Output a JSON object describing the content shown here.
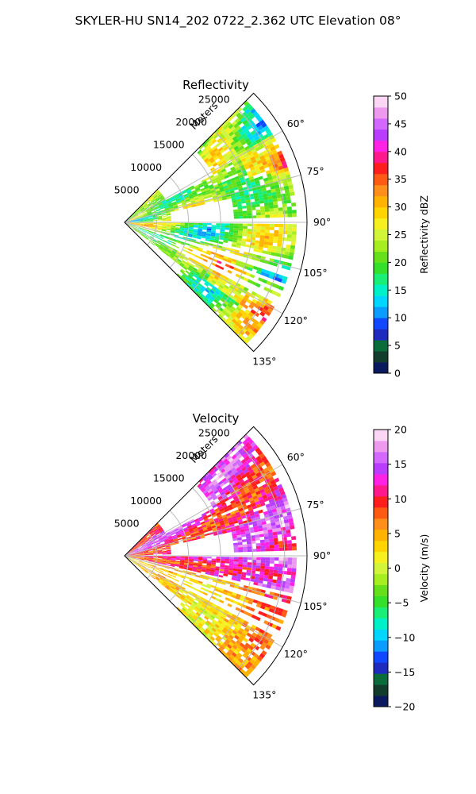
{
  "figure": {
    "title": "SKYLER-HU  SN14_202  0722_2.362 UTC Elevation 08°"
  },
  "chart_data": [
    {
      "type": "heatmap",
      "title": "Reflectivity",
      "projection": "polar-sector",
      "theta_range_deg": [
        45,
        135
      ],
      "range_label": "Meters",
      "range_ticks": [
        5000,
        10000,
        15000,
        20000,
        25000
      ],
      "range_max": 28500,
      "angle_ticks": [
        "60°",
        "75°",
        "90°",
        "105°",
        "120°",
        "135°"
      ],
      "angle_tick_values": [
        60,
        75,
        90,
        105,
        120,
        135
      ],
      "grid": true,
      "beam_gaps_deg": [
        89.3,
        103,
        107.5,
        111.5,
        114,
        117
      ],
      "colorbar": {
        "label": "Reflectivity dBZ",
        "min": 0,
        "max": 50,
        "ticks": [
          0,
          5,
          10,
          15,
          20,
          25,
          30,
          35,
          40,
          45,
          50
        ],
        "colors": [
          "#0b1a5e",
          "#123d2c",
          "#0a6b3b",
          "#1f2bbf",
          "#1148ff",
          "#0a9cff",
          "#00d6ff",
          "#00f0c8",
          "#19ef77",
          "#35e02a",
          "#66e01a",
          "#a6ee1f",
          "#d2f53a",
          "#f5f01e",
          "#ffd400",
          "#ffb200",
          "#ff8e1a",
          "#ff5a14",
          "#ff1e1e",
          "#ff1a8c",
          "#ff22e5",
          "#b93cff",
          "#d268ff",
          "#ec99ee",
          "#fbd6f5"
        ]
      }
    },
    {
      "type": "heatmap",
      "title": "Velocity",
      "projection": "polar-sector",
      "theta_range_deg": [
        45,
        135
      ],
      "range_label": "Meters",
      "range_ticks": [
        5000,
        10000,
        15000,
        20000,
        25000
      ],
      "range_max": 28500,
      "angle_ticks": [
        "60°",
        "75°",
        "90°",
        "105°",
        "120°",
        "135°"
      ],
      "angle_tick_values": [
        60,
        75,
        90,
        105,
        120,
        135
      ],
      "grid": true,
      "beam_gaps_deg": [
        89.3,
        103,
        107.5,
        111.5,
        114,
        117
      ],
      "colorbar": {
        "label": "Velocity (m/s)",
        "min": -20,
        "max": 20,
        "ticks": [
          -20,
          -15,
          -10,
          -5,
          0,
          5,
          10,
          15,
          20
        ],
        "colors": [
          "#0b1a5e",
          "#123d2c",
          "#0a6b3b",
          "#1f2bbf",
          "#1148ff",
          "#0a9cff",
          "#00d6ff",
          "#00f0c8",
          "#19ef77",
          "#35e02a",
          "#66e01a",
          "#a6ee1f",
          "#d2f53a",
          "#f5f01e",
          "#ffd400",
          "#ffb200",
          "#ff8e1a",
          "#ff5a14",
          "#ff1e1e",
          "#ff1a8c",
          "#ff22e5",
          "#b93cff",
          "#d268ff",
          "#ec99ee",
          "#fbd6f5"
        ]
      }
    }
  ]
}
